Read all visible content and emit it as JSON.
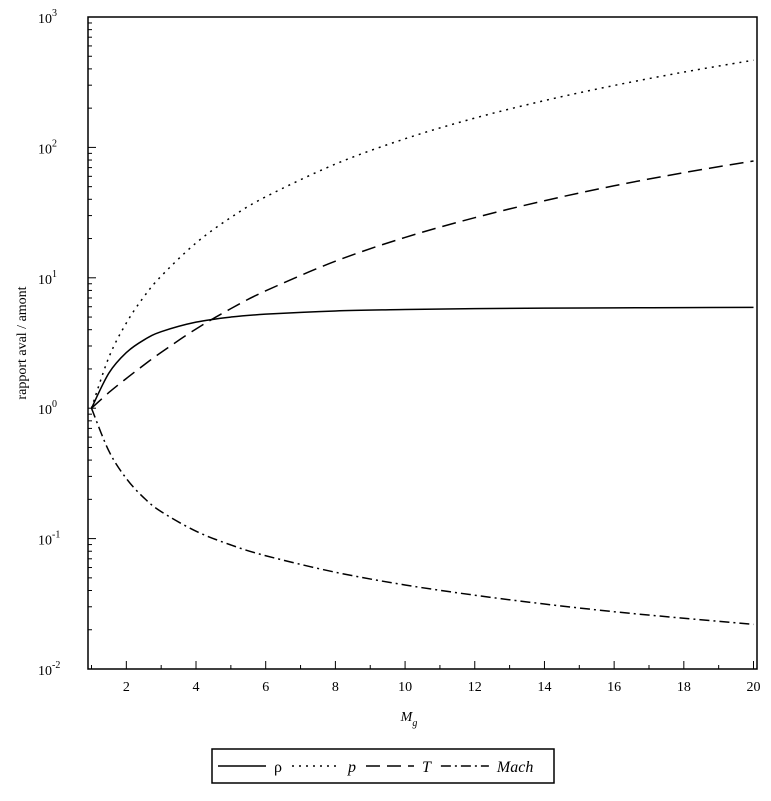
{
  "chart_data": {
    "type": "line",
    "title": "",
    "xlabel": "M",
    "xlabel_sub": "g",
    "ylabel": "rapport  aval / amont",
    "x_ticks": [
      "2",
      "4",
      "6",
      "8",
      "10",
      "12",
      "14",
      "16",
      "18",
      "20"
    ],
    "y_ticks": [
      {
        "base": "10",
        "exp": "-2",
        "value": 0.01
      },
      {
        "base": "10",
        "exp": "-1",
        "value": 0.1
      },
      {
        "base": "10",
        "exp": "0",
        "value": 1
      },
      {
        "base": "10",
        "exp": "1",
        "value": 10
      },
      {
        "base": "10",
        "exp": "2",
        "value": 100
      },
      {
        "base": "10",
        "exp": "3",
        "value": 1000
      }
    ],
    "xlim": [
      0.9,
      20.1
    ],
    "ylim": [
      0.01,
      1000
    ],
    "yscale": "log",
    "grid": false,
    "legend_position": "bottom",
    "x": [
      1,
      1.5,
      2,
      2.5,
      3,
      4,
      5,
      6,
      8,
      10,
      12,
      14,
      16,
      18,
      20
    ],
    "series": [
      {
        "name": "ρ",
        "italic": false,
        "style": "solid",
        "values": [
          1,
          1.86,
          2.67,
          3.33,
          3.86,
          4.57,
          5.0,
          5.26,
          5.57,
          5.71,
          5.8,
          5.85,
          5.88,
          5.91,
          5.93
        ]
      },
      {
        "name": "p",
        "italic": true,
        "style": "dotted",
        "values": [
          1,
          2.46,
          4.5,
          7.13,
          10.3,
          18.5,
          29.0,
          41.8,
          74.5,
          116.5,
          167.8,
          228.5,
          298.5,
          378.0,
          466.5
        ]
      },
      {
        "name": "T",
        "italic": true,
        "style": "dashed",
        "values": [
          1,
          1.32,
          1.69,
          2.14,
          2.68,
          4.05,
          5.8,
          7.94,
          13.4,
          20.4,
          28.9,
          39.0,
          50.8,
          64.0,
          78.7
        ]
      },
      {
        "name": "Mach",
        "italic": true,
        "style": "dashdot",
        "values": [
          1,
          0.469,
          0.289,
          0.206,
          0.161,
          0.114,
          0.0894,
          0.0739,
          0.0552,
          0.0441,
          0.0368,
          0.0315,
          0.0275,
          0.0245,
          0.022
        ]
      }
    ]
  }
}
